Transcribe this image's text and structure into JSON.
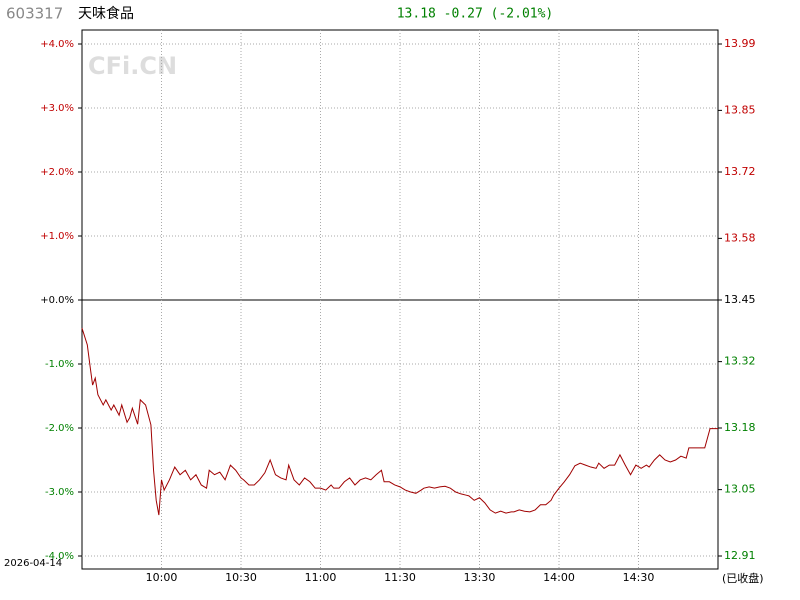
{
  "header": {
    "code": "603317",
    "name": "天味食品",
    "quote": "13.18 -0.27 (-2.01%)"
  },
  "footer": {
    "date": "2026-04-14",
    "status": "(已收盘)"
  },
  "watermark": "CFi.CN",
  "chart_data": {
    "type": "line",
    "colors": {
      "up": "#c00000",
      "down": "#008000",
      "flat": "#000000"
    },
    "grid": true,
    "xlim": [
      0,
      240
    ],
    "xticks": [
      {
        "value": 30,
        "label": "10:00"
      },
      {
        "value": 60,
        "label": "10:30"
      },
      {
        "value": 90,
        "label": "11:00"
      },
      {
        "value": 120,
        "label": "11:30"
      },
      {
        "value": 150,
        "label": "13:30"
      },
      {
        "value": 180,
        "label": "14:00"
      },
      {
        "value": 210,
        "label": "14:30"
      }
    ],
    "ylim": [
      -4,
      4
    ],
    "yticks": [
      {
        "value": 4,
        "label": "+4.0%"
      },
      {
        "value": 3,
        "label": "+3.0%"
      },
      {
        "value": 2,
        "label": "+2.0%"
      },
      {
        "value": 1,
        "label": "+1.0%"
      },
      {
        "value": 0,
        "label": "+0.0%"
      },
      {
        "value": -1,
        "label": "-1.0%"
      },
      {
        "value": -2,
        "label": "-2.0%"
      },
      {
        "value": -3,
        "label": "-3.0%"
      },
      {
        "value": -4,
        "label": "-4.0%"
      }
    ],
    "y2lim": [
      12.91,
      13.99
    ],
    "y2ref": 13.45,
    "y2ticks": [
      13.99,
      13.85,
      13.72,
      13.58,
      13.45,
      13.32,
      13.18,
      13.05,
      12.91
    ],
    "series": [
      {
        "color": "#a00000",
        "x": [
          0,
          2,
          3,
          4,
          5,
          6,
          8,
          9,
          11,
          12,
          14,
          15,
          17,
          18,
          19,
          21,
          22,
          24,
          26,
          27,
          28,
          29,
          30,
          31,
          33,
          35,
          37,
          39,
          41,
          43,
          45,
          47,
          48,
          50,
          52,
          54,
          56,
          58,
          60,
          61,
          63,
          65,
          67,
          69,
          71,
          73,
          75,
          77,
          78,
          80,
          82,
          84,
          86,
          88,
          90,
          92,
          94,
          95,
          97,
          99,
          101,
          103,
          105,
          107,
          109,
          111,
          113,
          114,
          116,
          118,
          120,
          122,
          124,
          126,
          128,
          129,
          131,
          133,
          135,
          137,
          139,
          141,
          143,
          145,
          146,
          148,
          150,
          152,
          154,
          156,
          158,
          160,
          162,
          163,
          165,
          167,
          169,
          171,
          173,
          175,
          177,
          178,
          180,
          182,
          184,
          186,
          188,
          190,
          192,
          194,
          195,
          197,
          199,
          201,
          203,
          205,
          207,
          209,
          211,
          213,
          214,
          216,
          218,
          220,
          222,
          224,
          226,
          228,
          229,
          231,
          233,
          235,
          237,
          240
        ],
        "values": [
          -0.44,
          -0.7,
          -1.02,
          -1.33,
          -1.22,
          -1.48,
          -1.64,
          -1.56,
          -1.72,
          -1.64,
          -1.8,
          -1.64,
          -1.91,
          -1.84,
          -1.69,
          -1.94,
          -1.56,
          -1.64,
          -1.95,
          -2.66,
          -3.13,
          -3.36,
          -2.81,
          -2.97,
          -2.81,
          -2.61,
          -2.73,
          -2.66,
          -2.81,
          -2.73,
          -2.89,
          -2.94,
          -2.66,
          -2.73,
          -2.69,
          -2.81,
          -2.58,
          -2.66,
          -2.78,
          -2.81,
          -2.89,
          -2.89,
          -2.81,
          -2.7,
          -2.5,
          -2.73,
          -2.78,
          -2.81,
          -2.58,
          -2.81,
          -2.89,
          -2.78,
          -2.84,
          -2.94,
          -2.94,
          -2.97,
          -2.89,
          -2.94,
          -2.94,
          -2.84,
          -2.78,
          -2.89,
          -2.81,
          -2.78,
          -2.81,
          -2.73,
          -2.66,
          -2.84,
          -2.84,
          -2.89,
          -2.92,
          -2.97,
          -3.0,
          -3.02,
          -2.97,
          -2.94,
          -2.92,
          -2.94,
          -2.92,
          -2.91,
          -2.94,
          -3.0,
          -3.03,
          -3.05,
          -3.06,
          -3.13,
          -3.09,
          -3.17,
          -3.28,
          -3.33,
          -3.3,
          -3.33,
          -3.31,
          -3.31,
          -3.28,
          -3.3,
          -3.31,
          -3.28,
          -3.2,
          -3.2,
          -3.13,
          -3.05,
          -2.94,
          -2.84,
          -2.73,
          -2.59,
          -2.55,
          -2.58,
          -2.61,
          -2.63,
          -2.55,
          -2.63,
          -2.58,
          -2.58,
          -2.42,
          -2.58,
          -2.73,
          -2.58,
          -2.63,
          -2.58,
          -2.61,
          -2.5,
          -2.42,
          -2.5,
          -2.53,
          -2.5,
          -2.44,
          -2.47,
          -2.31,
          -2.31,
          -2.31,
          -2.31,
          -2.01,
          -2.01
        ]
      }
    ]
  }
}
